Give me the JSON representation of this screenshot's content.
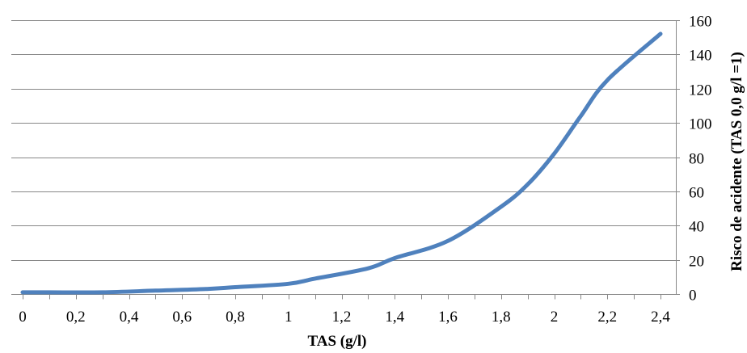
{
  "chart_data": {
    "type": "line",
    "xlabel": "TAS (g/l)",
    "ylabel": "Risco de acidente (TAS 0,0 g/l =1)",
    "xlim": [
      0,
      2.4
    ],
    "ylim": [
      0,
      160
    ],
    "x_ticks": [
      {
        "value": 0,
        "label": "0"
      },
      {
        "value": 0.2,
        "label": "0,2"
      },
      {
        "value": 0.4,
        "label": "0,4"
      },
      {
        "value": 0.6,
        "label": "0,6"
      },
      {
        "value": 0.8,
        "label": "0,8"
      },
      {
        "value": 1.0,
        "label": "1"
      },
      {
        "value": 1.2,
        "label": "1,2"
      },
      {
        "value": 1.4,
        "label": "1,4"
      },
      {
        "value": 1.6,
        "label": "1,6"
      },
      {
        "value": 1.8,
        "label": "1,8"
      },
      {
        "value": 2.0,
        "label": "2"
      },
      {
        "value": 2.2,
        "label": "2,2"
      },
      {
        "value": 2.4,
        "label": "2,4"
      }
    ],
    "y_ticks": [
      {
        "value": 0,
        "label": "0"
      },
      {
        "value": 20,
        "label": "20"
      },
      {
        "value": 40,
        "label": "40"
      },
      {
        "value": 60,
        "label": "60"
      },
      {
        "value": 80,
        "label": "80"
      },
      {
        "value": 100,
        "label": "100"
      },
      {
        "value": 120,
        "label": "120"
      },
      {
        "value": 140,
        "label": "140"
      },
      {
        "value": 160,
        "label": "160"
      }
    ],
    "y_axis_side": "right",
    "grid": "horizontal",
    "series": [
      {
        "color": "#4f81bd",
        "x": [
          0,
          0.1,
          0.3,
          0.5,
          0.7,
          0.8,
          1.0,
          1.1,
          1.3,
          1.4,
          1.6,
          1.8,
          1.9,
          2.0,
          2.1,
          2.2,
          2.4
        ],
        "y": [
          1,
          1,
          1,
          2,
          3,
          4,
          6,
          9,
          15,
          21,
          31,
          51,
          64,
          82,
          104,
          125,
          152
        ]
      }
    ]
  }
}
